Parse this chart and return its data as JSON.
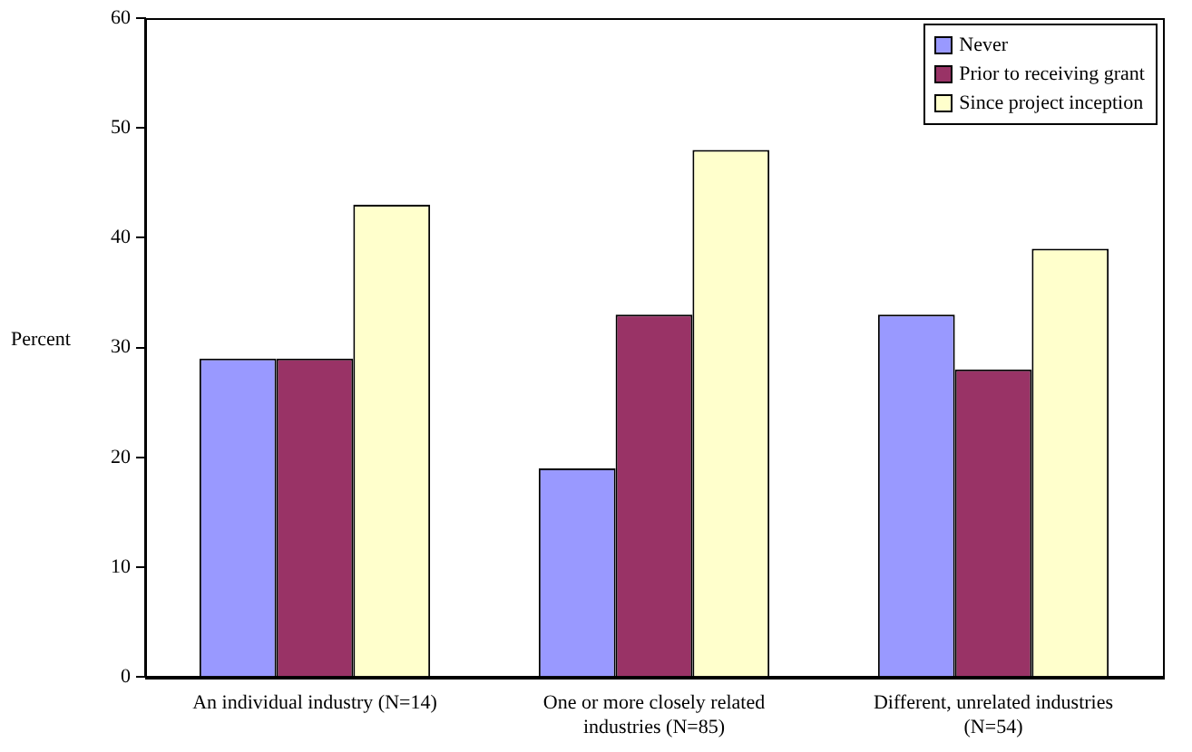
{
  "chart_data": {
    "type": "bar",
    "ylabel": "Percent",
    "categories": [
      "An individual industry (N=14)",
      "One or more closely related industries (N=85)",
      "Different, unrelated industries (N=54)"
    ],
    "series": [
      {
        "name": "Never",
        "color": "#9999ff",
        "values": [
          29,
          19,
          33
        ]
      },
      {
        "name": "Prior to receiving grant",
        "color": "#993366",
        "values": [
          29,
          33,
          28
        ]
      },
      {
        "name": "Since project inception",
        "color": "#ffffcc",
        "values": [
          43,
          48,
          39
        ]
      }
    ],
    "ylim": [
      0,
      60
    ],
    "yticks": [
      0,
      10,
      20,
      30,
      40,
      50,
      60
    ],
    "grid": false,
    "legend": "top right"
  }
}
